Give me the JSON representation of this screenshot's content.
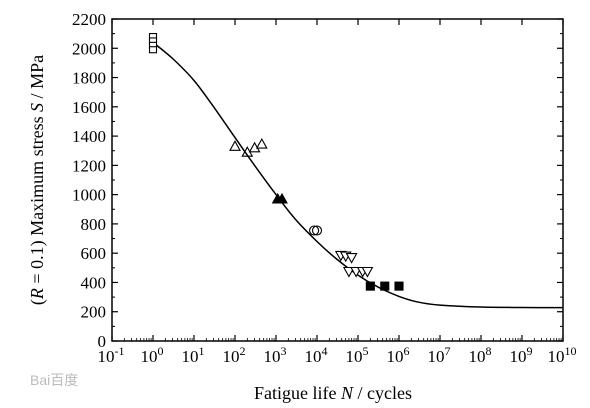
{
  "chart_data": {
    "type": "scatter",
    "xscale": "log",
    "xlim": [
      0.1,
      10000000000
    ],
    "ylim": [
      0,
      2200
    ],
    "xticks": [
      {
        "value": 0.1,
        "base": "10",
        "exp": "-1"
      },
      {
        "value": 1,
        "base": "10",
        "exp": "0"
      },
      {
        "value": 10,
        "base": "10",
        "exp": "1"
      },
      {
        "value": 100,
        "base": "10",
        "exp": "2"
      },
      {
        "value": 1000,
        "base": "10",
        "exp": "3"
      },
      {
        "value": 10000,
        "base": "10",
        "exp": "4"
      },
      {
        "value": 100000,
        "base": "10",
        "exp": "5"
      },
      {
        "value": 1000000,
        "base": "10",
        "exp": "6"
      },
      {
        "value": 10000000,
        "base": "10",
        "exp": "7"
      },
      {
        "value": 100000000,
        "base": "10",
        "exp": "8"
      },
      {
        "value": 1000000000,
        "base": "10",
        "exp": "9"
      },
      {
        "value": 10000000000,
        "base": "10",
        "exp": "10"
      }
    ],
    "yticks": [
      "0",
      "200",
      "400",
      "600",
      "800",
      "1000",
      "1200",
      "1400",
      "1600",
      "1800",
      "2000",
      "2200"
    ],
    "xlabel": {
      "prefix": "Fatigue life ",
      "symbol": "N",
      "suffix": "  / cycles"
    },
    "ylabel": {
      "paren_open": "(",
      "symbol": "R",
      "condition": " = 0.1)",
      "middle": " Maximum stress ",
      "symbol2": "S",
      "suffix": " / MPa"
    },
    "grid": false,
    "legend": "none",
    "series": [
      {
        "marker": "open-square",
        "points": [
          [
            1,
            2080
          ],
          [
            1,
            2050
          ],
          [
            1,
            2020
          ],
          [
            1,
            1990
          ]
        ]
      },
      {
        "marker": "open-triangle-up",
        "points": [
          [
            100,
            1330
          ],
          [
            200,
            1290
          ],
          [
            300,
            1320
          ],
          [
            450,
            1345
          ]
        ]
      },
      {
        "marker": "filled-triangle-up",
        "points": [
          [
            1100,
            970
          ],
          [
            1400,
            970
          ]
        ]
      },
      {
        "marker": "open-circle",
        "points": [
          [
            8500,
            755
          ],
          [
            10000,
            755
          ]
        ]
      },
      {
        "marker": "open-triangle-down",
        "points": [
          [
            38000,
            585
          ],
          [
            50000,
            580
          ],
          [
            60000,
            475
          ],
          [
            70000,
            570
          ],
          [
            90000,
            475
          ],
          [
            130000,
            475
          ],
          [
            170000,
            475
          ]
        ]
      },
      {
        "marker": "filled-square",
        "points": [
          [
            200000,
            375
          ],
          [
            450000,
            375
          ],
          [
            1000000,
            375
          ]
        ]
      }
    ],
    "fit_curve": [
      [
        1,
        2040
      ],
      [
        3,
        1930
      ],
      [
        10,
        1780
      ],
      [
        30,
        1600
      ],
      [
        100,
        1390
      ],
      [
        300,
        1200
      ],
      [
        1000,
        1000
      ],
      [
        3000,
        830
      ],
      [
        10000,
        680
      ],
      [
        30000,
        560
      ],
      [
        100000,
        450
      ],
      [
        300000,
        370
      ],
      [
        1000000,
        305
      ],
      [
        3000000,
        265
      ],
      [
        10000000,
        245
      ],
      [
        100000000,
        232
      ],
      [
        1000000000,
        229
      ],
      [
        10000000000,
        228
      ]
    ]
  },
  "watermark": {
    "text": "Bai百度"
  }
}
